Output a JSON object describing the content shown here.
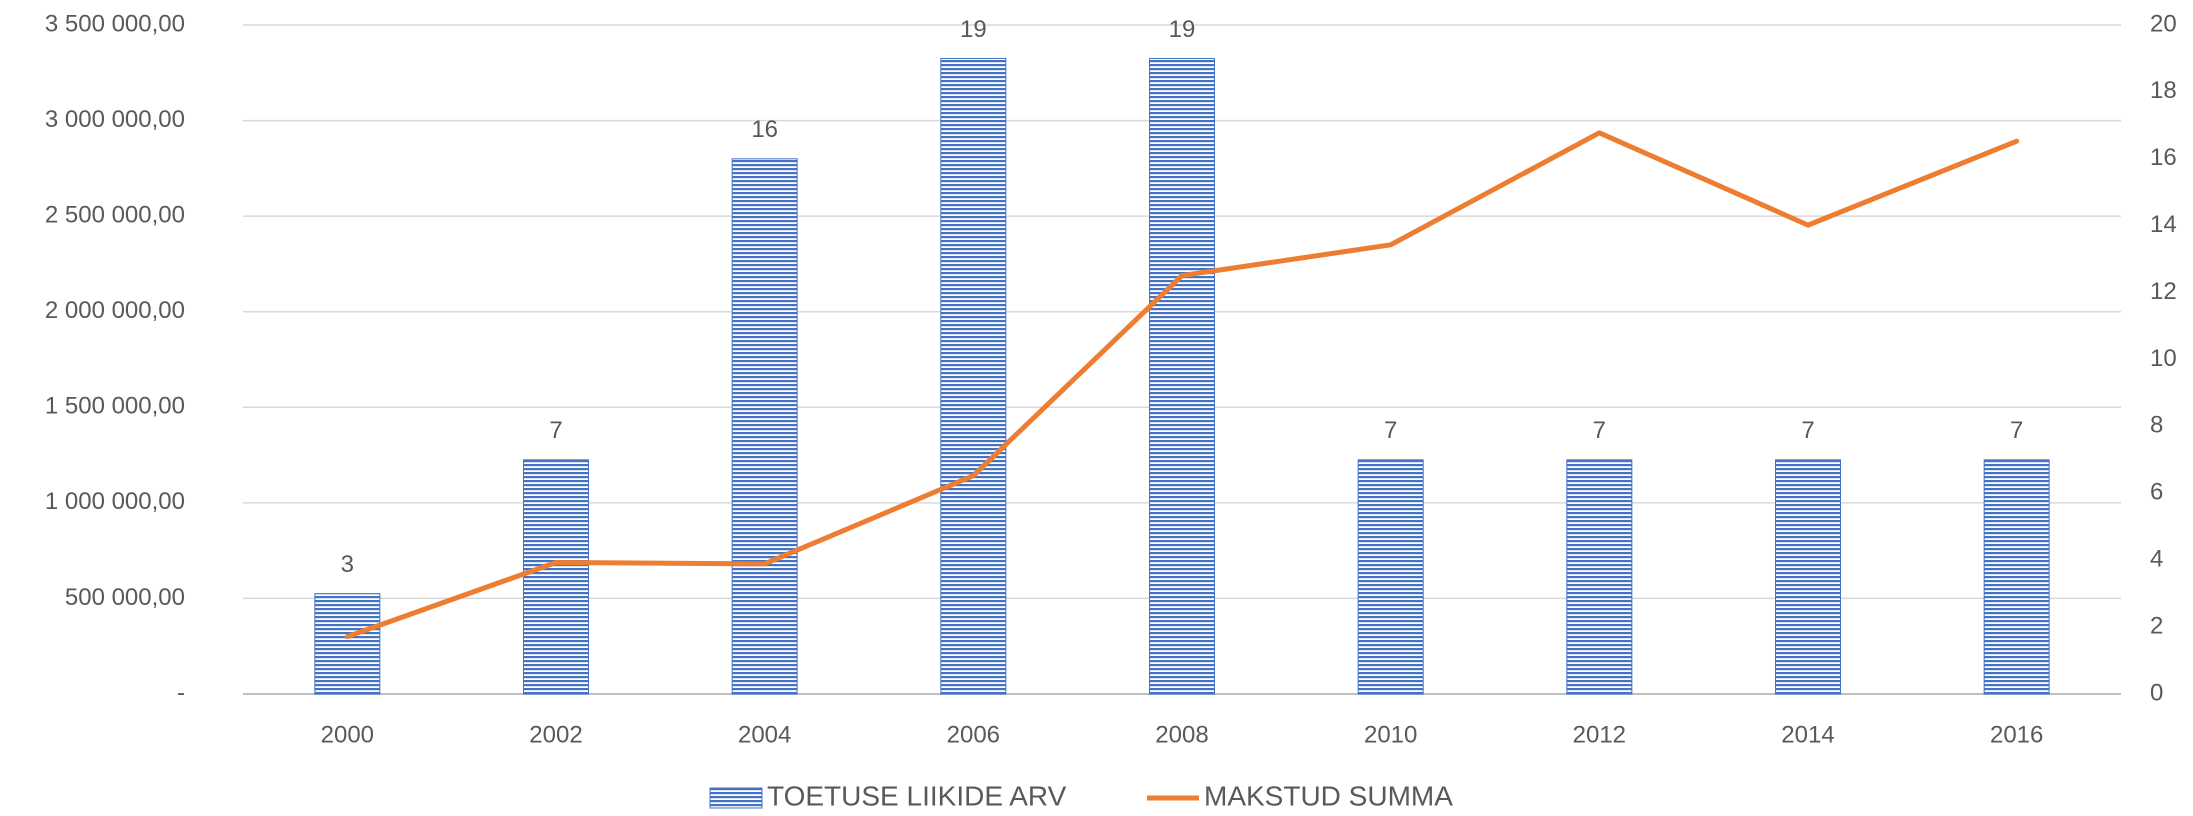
{
  "chart_data": {
    "type": "combo",
    "categories": [
      "2000",
      "2002",
      "2004",
      "2006",
      "2008",
      "2010",
      "2012",
      "2014",
      "2016"
    ],
    "series": [
      {
        "name": "TOETUSE LIIKIDE ARV",
        "type": "bar",
        "axis": "y2",
        "color": "#4472c4",
        "values": [
          3,
          7,
          16,
          19,
          19,
          7,
          7,
          7,
          7
        ]
      },
      {
        "name": "MAKSTUD SUMMA",
        "type": "line",
        "axis": "y",
        "color": "#ed7d31",
        "values": [
          300000,
          688000,
          681000,
          1142000,
          2189000,
          2350000,
          2936000,
          2453000,
          2892000
        ]
      }
    ],
    "ylim": [
      0,
      3500000
    ],
    "yticks": [
      {
        "value": 0,
        "label": "-"
      },
      {
        "value": 500000,
        "label": "500 000,00"
      },
      {
        "value": 1000000,
        "label": "1 000 000,00"
      },
      {
        "value": 1500000,
        "label": "1 500 000,00"
      },
      {
        "value": 2000000,
        "label": "2 000 000,00"
      },
      {
        "value": 2500000,
        "label": "2 500 000,00"
      },
      {
        "value": 3000000,
        "label": "3 000 000,00"
      },
      {
        "value": 3500000,
        "label": "3 500 000,00"
      }
    ],
    "y2lim": [
      0,
      20
    ],
    "y2ticks": [
      0,
      2,
      4,
      6,
      8,
      10,
      12,
      14,
      16,
      18,
      20
    ],
    "grid": true,
    "legend": "bottom"
  }
}
